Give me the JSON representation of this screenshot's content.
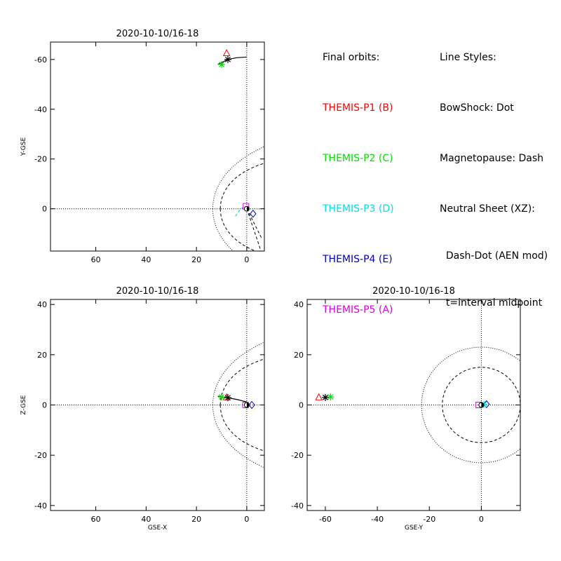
{
  "legend_orbits": {
    "heading": "Final orbits:",
    "items": [
      {
        "label": "THEMIS-P1 (B)",
        "color": "#ff0000"
      },
      {
        "label": "THEMIS-P2 (C)",
        "color": "#00e000"
      },
      {
        "label": "THEMIS-P3 (D)",
        "color": "#00e0e0"
      },
      {
        "label": "THEMIS-P4 (E)",
        "color": "#0000c8"
      },
      {
        "label": "THEMIS-P5 (A)",
        "color": "#e000e0"
      }
    ]
  },
  "legend_styles": {
    "heading": "Line Styles:",
    "lines": [
      "BowShock: Dot",
      "Magnetopause: Dash",
      "Neutral Sheet (XZ):",
      "  Dash-Dot (AEN mod)",
      "  t=interval midpoint"
    ]
  },
  "chart_data": [
    {
      "type": "line",
      "title": "2020-10-10/16-18",
      "xlabel": "",
      "ylabel": "Y-GSE",
      "xlim": [
        78,
        -7
      ],
      "ylim": [
        17,
        -67
      ],
      "xticks": [
        60,
        40,
        20,
        0
      ],
      "yticks": [
        -60,
        -40,
        -20,
        0
      ],
      "guides": {
        "h0": true,
        "v0": true
      },
      "boundaries": {
        "bowshock": "dot",
        "magnetopause": "dash"
      },
      "tail_fan": true,
      "series": [
        {
          "marker": "triangle",
          "color": "#ff0000",
          "points": [
            [
              8.0,
              -62.5
            ]
          ]
        },
        {
          "marker": "asterisk",
          "color": "#00e000",
          "points": [
            [
              10.0,
              -58.0
            ]
          ]
        },
        {
          "marker": "asterisk",
          "color": "#000000",
          "points": [
            [
              7.5,
              -60.0
            ]
          ]
        },
        {
          "marker": "none",
          "color": "#000000",
          "dash": "solid",
          "points": [
            [
              11.5,
              -58.0
            ],
            [
              9.5,
              -59.0
            ],
            [
              7.5,
              -60.0
            ],
            [
              4.0,
              -60.7
            ],
            [
              0.0,
              -61.0
            ]
          ]
        },
        {
          "marker": "none",
          "color": "#00e0e0",
          "dash": "4 3",
          "points": [
            [
              4.5,
              3.0
            ],
            [
              3.5,
              1.5
            ],
            [
              2.5,
              0.3
            ],
            [
              1.5,
              -0.6
            ],
            [
              0.5,
              -1.0
            ]
          ]
        },
        {
          "marker": "diamond",
          "color": "#0000c8",
          "points": [
            [
              -2.5,
              2.0
            ]
          ]
        },
        {
          "marker": "square",
          "color": "#e000e0",
          "points": [
            [
              0.3,
              -1.0
            ]
          ]
        },
        {
          "marker": "earth",
          "color": "#000000",
          "points": [
            [
              0.0,
              0.0
            ]
          ]
        }
      ]
    },
    {
      "type": "line",
      "title": "2020-10-10/16-18",
      "xlabel": "GSE-X",
      "ylabel": "Z-GSE",
      "xlim": [
        78,
        -7
      ],
      "ylim": [
        -42,
        42
      ],
      "xticks": [
        60,
        40,
        20,
        0
      ],
      "yticks": [
        40,
        20,
        0,
        -20,
        -40
      ],
      "guides": {
        "h0": true,
        "v0": true
      },
      "boundaries": {
        "bowshock": "dot",
        "magnetopause": "dash"
      },
      "tail_fan": false,
      "series": [
        {
          "marker": "none",
          "color": "#000000",
          "dash": "solid",
          "points": [
            [
              11.5,
              3.5
            ],
            [
              7.5,
              2.9
            ],
            [
              3.5,
              2.1
            ],
            [
              0.0,
              1.2
            ]
          ]
        },
        {
          "marker": "triangle",
          "color": "#ff0000",
          "points": [
            [
              8.0,
              3.0
            ]
          ]
        },
        {
          "marker": "asterisk",
          "color": "#00e000",
          "points": [
            [
              10.0,
              3.2
            ]
          ]
        },
        {
          "marker": "asterisk",
          "color": "#000000",
          "points": [
            [
              7.5,
              2.9
            ]
          ]
        },
        {
          "marker": "none",
          "color": "#00e0e0",
          "dash": "4 3",
          "points": [
            [
              3.5,
              0.0
            ],
            [
              1.5,
              0.0
            ]
          ]
        },
        {
          "marker": "diamond",
          "color": "#0000c8",
          "points": [
            [
              -2.0,
              0.0
            ]
          ]
        },
        {
          "marker": "square",
          "color": "#e000e0",
          "points": [
            [
              0.5,
              0.0
            ]
          ]
        },
        {
          "marker": "earth",
          "color": "#000000",
          "points": [
            [
              0.0,
              0.0
            ]
          ]
        }
      ]
    },
    {
      "type": "line",
      "title": "2020-10-10/16-18",
      "xlabel": "GSE-Y",
      "ylabel": "",
      "xlim": [
        -67,
        15
      ],
      "ylim": [
        -42,
        42
      ],
      "xticks": [
        -60,
        -40,
        -20,
        0
      ],
      "yticks": [
        40,
        20,
        0,
        -20,
        -40
      ],
      "guides": {
        "h0": true,
        "v0": true
      },
      "rings": {
        "bowshock_radius": 23,
        "magnetopause_radius": 15
      },
      "series": [
        {
          "marker": "triangle",
          "color": "#ff0000",
          "points": [
            [
              -62.5,
              3.0
            ]
          ]
        },
        {
          "marker": "asterisk",
          "color": "#00e000",
          "points": [
            [
              -58.0,
              3.2
            ]
          ]
        },
        {
          "marker": "asterisk",
          "color": "#000000",
          "points": [
            [
              -60.0,
              3.0
            ]
          ]
        },
        {
          "marker": "diamond",
          "color": "#0000c8",
          "points": [
            [
              2.0,
              0.3
            ]
          ]
        },
        {
          "marker": "asterisk",
          "color": "#00e0e0",
          "points": [
            [
              1.0,
              0.2
            ]
          ]
        },
        {
          "marker": "square",
          "color": "#e000e0",
          "points": [
            [
              -1.0,
              0.0
            ]
          ]
        },
        {
          "marker": "earth",
          "color": "#000000",
          "points": [
            [
              0.0,
              0.0
            ]
          ]
        }
      ]
    }
  ]
}
